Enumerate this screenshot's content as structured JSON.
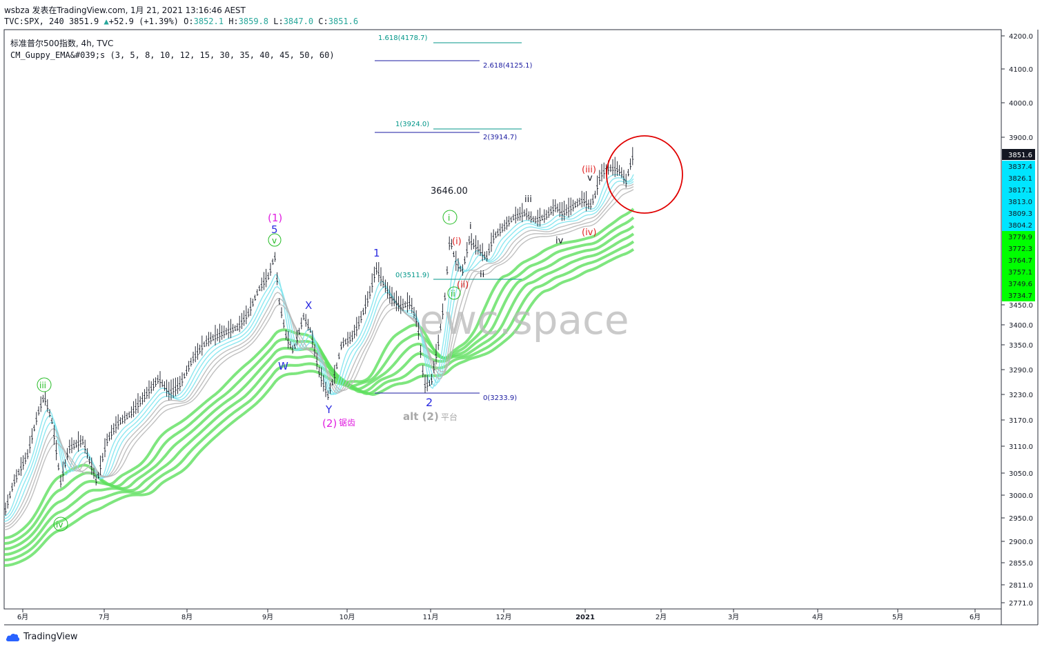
{
  "header": {
    "line1": "wsbza 发表在TradingView.com, 1月 21, 2021 13:16:46 AEST",
    "symbol": "TVC:SPX, 240",
    "last": "3851.9",
    "change": "+52.9 (+1.39%)",
    "open_label": "O:",
    "open": "3852.1",
    "high_label": "H:",
    "high": "3859.8",
    "low_label": "L:",
    "low": "3847.0",
    "close_label": "C:",
    "close": "3851.6"
  },
  "legend": {
    "title": "标准普尔500指数, 4h, TVC",
    "indicator": "CM_Guppy_EMA&#039;s (3, 5, 8, 10, 12, 15, 30, 35, 40, 45, 50, 60)"
  },
  "price_axis": {
    "ticks": [
      "4200.0",
      "4100.0",
      "4000.0",
      "3900.0",
      "3450.0",
      "3400.0",
      "3350.0",
      "3290.0",
      "3230.0",
      "3170.0",
      "3110.0",
      "3050.0",
      "3000.0",
      "2950.0",
      "2900.0",
      "2855.0",
      "2811.0",
      "2771.0"
    ],
    "current_tag": "3851.6",
    "cyan_tags": [
      "3837.4",
      "3826.1",
      "3817.1",
      "3813.0",
      "3809.3",
      "3804.2"
    ],
    "green_tags": [
      "3779.9",
      "3772.3",
      "3764.7",
      "3757.1",
      "3749.6",
      "3734.7"
    ]
  },
  "time_axis": {
    "labels": [
      "6月",
      "7月",
      "8月",
      "9月",
      "10月",
      "11月",
      "12月",
      "2021",
      "2月",
      "3月",
      "4月",
      "5月",
      "6月"
    ]
  },
  "fib": {
    "f1618": "1.618(4178.7)",
    "f2618": "2.618(4125.1)",
    "f1": "1(3924.0)",
    "f2": "2(3914.7)",
    "f0a": "0(3511.9)",
    "f0b": "0(3233.9)"
  },
  "annotations": {
    "w_1_paren": "(1)",
    "w_5": "5",
    "w_v_circle": "v",
    "w_iii_circle": "iii",
    "w_iv_circle": "iv",
    "w_X": "X",
    "w_W": "W",
    "w_Y": "Y",
    "w_2_paren": "(2)",
    "w_2_note": "锯齿",
    "w_1": "1",
    "w_2": "2",
    "alt": "alt (2)",
    "alt_note": "平台",
    "price_note": "3646.00",
    "i_circle": "i",
    "ii_circle": "ii",
    "i_paren": "(i)",
    "ii_paren": "(ii)",
    "i_small": "i",
    "ii_small": "ii",
    "iii_small": "iii",
    "iv_small": "iv",
    "v_small": "v",
    "iii_paren": "(iii)",
    "iv_paren": "(iv)"
  },
  "watermark": "ewc.space",
  "footer": {
    "brand": "TradingView"
  },
  "colors": {
    "blue": "#2a2ae0",
    "magenta": "#e020e0",
    "green_label": "#22bb22",
    "red_label": "#e02020",
    "cyan_band": "#7fe4ee",
    "green_band": "#5fe05f",
    "grey_band": "#9a9a9a",
    "fib_teal": "#009688",
    "circle_red": "#e00000"
  }
}
